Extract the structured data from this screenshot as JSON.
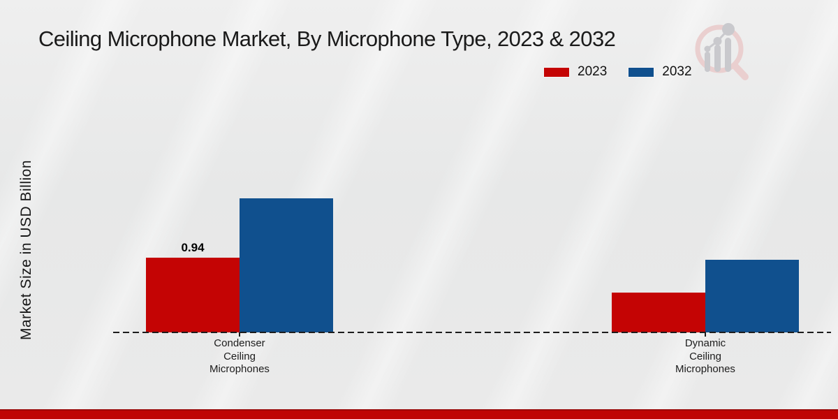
{
  "header": {
    "title": "Ceiling Microphone Market, By Microphone Type, 2023 & 2032"
  },
  "y_axis": {
    "label": "Market Size in USD Billion"
  },
  "legend": {
    "items": [
      {
        "label": "2023",
        "color": "#c40404"
      },
      {
        "label": "2032",
        "color": "#10508e"
      }
    ]
  },
  "chart_data": {
    "type": "bar",
    "title": "Ceiling Microphone Market, By Microphone Type, 2023 & 2032",
    "xlabel": "",
    "ylabel": "Market Size in USD Billion",
    "categories": [
      "Condenser Ceiling Microphones",
      "Dynamic Ceiling Microphones"
    ],
    "category_label_lines": [
      [
        "Condenser",
        "Ceiling",
        "Microphones"
      ],
      [
        "Dynamic",
        "Ceiling",
        "Microphones"
      ]
    ],
    "series": [
      {
        "name": "2023",
        "color": "#c40404",
        "values": [
          0.94,
          0.5
        ]
      },
      {
        "name": "2032",
        "color": "#10508e",
        "values": [
          1.69,
          0.91
        ]
      }
    ],
    "data_labels": [
      {
        "series_index": 0,
        "category_index": 0,
        "text": "0.94"
      }
    ],
    "ylim": [
      0,
      2.8
    ],
    "grid": false,
    "legend_position": "top-right",
    "baseline_style": "dashed"
  },
  "branding": {
    "logo_icon": "magnifier-bar-chart-logo",
    "footer_bar_color": "#bf0404"
  }
}
